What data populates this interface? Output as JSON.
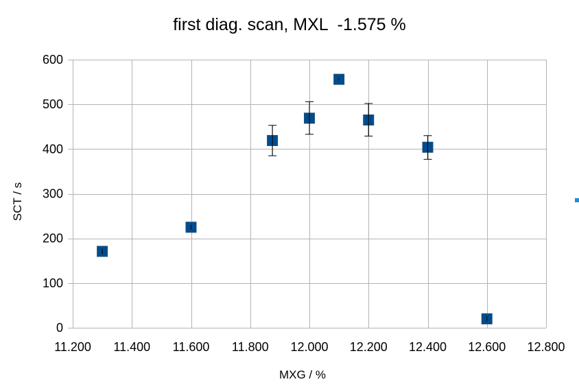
{
  "chart_data": {
    "type": "scatter",
    "title": "first diag. scan, MXL  -1.575 %",
    "xlabel": "MXG / %",
    "ylabel": "SCT / s",
    "xlim": [
      11.2,
      12.8
    ],
    "ylim": [
      0,
      600
    ],
    "xticks": [
      "11.200",
      "11.400",
      "11.600",
      "11.800",
      "12.000",
      "12.200",
      "12.400",
      "12.600",
      "12.800"
    ],
    "yticks": [
      "0",
      "100",
      "200",
      "300",
      "400",
      "500",
      "600"
    ],
    "grid": true,
    "marker": "square",
    "marker_color": "#004c8c",
    "series": [
      {
        "points": [
          {
            "x": 11.3,
            "y": 171,
            "err_low": 165,
            "err_high": 177
          },
          {
            "x": 11.6,
            "y": 225,
            "err_low": 220,
            "err_high": 230
          },
          {
            "x": 11.875,
            "y": 419,
            "err_low": 385,
            "err_high": 453
          },
          {
            "x": 12.0,
            "y": 469,
            "err_low": 433,
            "err_high": 506
          },
          {
            "x": 12.1,
            "y": 556,
            "err_low": 553,
            "err_high": 559
          },
          {
            "x": 12.2,
            "y": 465,
            "err_low": 429,
            "err_high": 502
          },
          {
            "x": 12.4,
            "y": 404,
            "err_low": 377,
            "err_high": 430
          },
          {
            "x": 12.6,
            "y": 20,
            "err_low": 14,
            "err_high": 26
          }
        ]
      }
    ]
  },
  "colors": {
    "grid": "#b3b3b3",
    "marker": "#004c8c",
    "marker_edge": "#1f4e79",
    "edge_marker": "#1c90d8"
  }
}
